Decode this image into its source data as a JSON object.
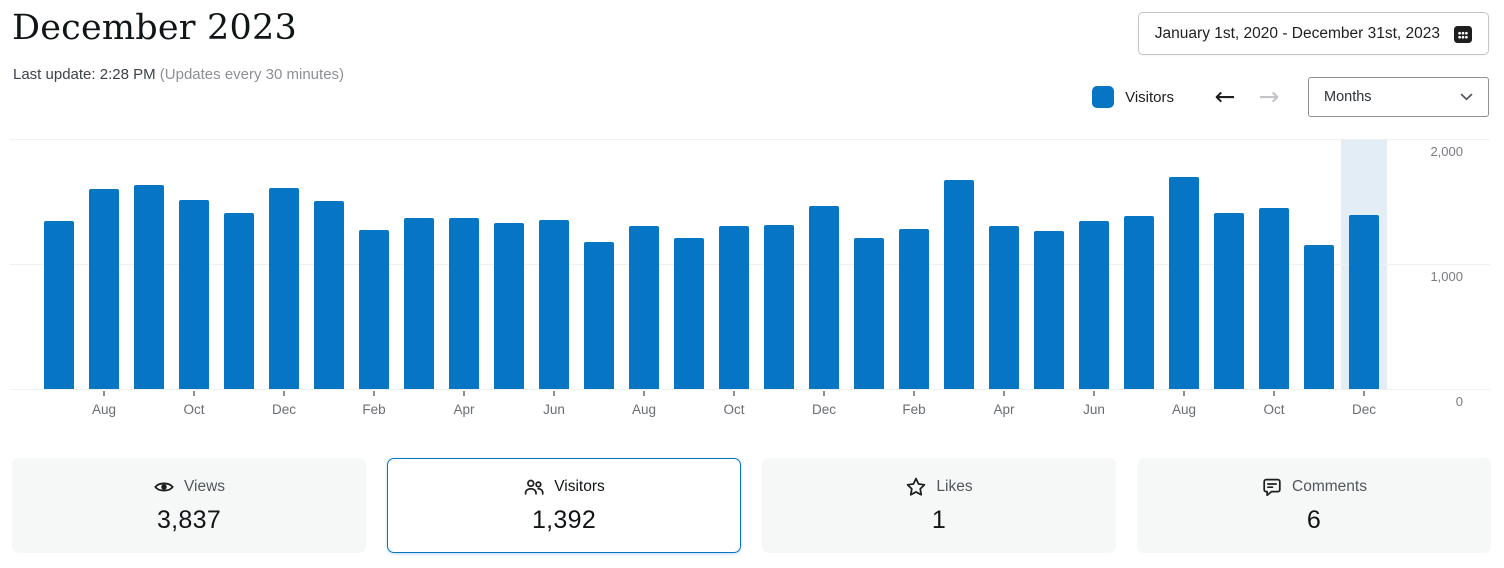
{
  "header": {
    "title": "December 2023",
    "last_update": "Last update: 2:28 PM",
    "update_note": "(Updates every 30 minutes)"
  },
  "controls": {
    "date_range_label": "January 1st, 2020 - December 31st, 2023",
    "date_range_icon": "calendar-icon",
    "legend": {
      "label": "Visitors",
      "color": "#0675C4"
    },
    "prev_icon": "arrow-left-icon",
    "prev_glyph": "←",
    "next_icon": "arrow-right-icon",
    "next_glyph": "→",
    "period_select": {
      "value": "Months",
      "icon": "chevron-down-icon"
    }
  },
  "chart_data": {
    "type": "bar",
    "x": [
      "Jul 2021",
      "Aug 2021",
      "Sep 2021",
      "Oct 2021",
      "Nov 2021",
      "Dec 2021",
      "Jan 2022",
      "Feb 2022",
      "Mar 2022",
      "Apr 2022",
      "May 2022",
      "Jun 2022",
      "Jul 2022",
      "Aug 2022",
      "Sep 2022",
      "Oct 2022",
      "Nov 2022",
      "Dec 2022",
      "Jan 2023",
      "Feb 2023",
      "Mar 2023",
      "Apr 2023",
      "May 2023",
      "Jun 2023",
      "Jul 2023",
      "Aug 2023",
      "Sep 2023",
      "Oct 2023",
      "Nov 2023",
      "Dec 2023"
    ],
    "series": [
      {
        "name": "Visitors",
        "values": [
          1340,
          1600,
          1635,
          1515,
          1410,
          1610,
          1505,
          1275,
          1370,
          1370,
          1330,
          1355,
          1175,
          1305,
          1210,
          1305,
          1315,
          1465,
          1210,
          1280,
          1670,
          1305,
          1265,
          1340,
          1385,
          1695,
          1410,
          1450,
          1155,
          1392
        ]
      }
    ],
    "x_tick_labels": [
      "Aug",
      "Oct",
      "Dec",
      "Feb",
      "Apr",
      "Jun",
      "Aug",
      "Oct",
      "Dec",
      "Feb",
      "Apr",
      "Jun",
      "Aug",
      "Oct",
      "Dec"
    ],
    "y_ticks": [
      0,
      1000,
      2000
    ],
    "y_tick_labels": [
      "0",
      "1,000",
      "2,000"
    ],
    "ylim": [
      0,
      2000
    ],
    "xlabel": "",
    "ylabel": "",
    "grid": true,
    "legend_position": "top-right",
    "bar_color": "#0675C4",
    "highlight_index": 29,
    "highlight_color": "#E2EDF5"
  },
  "summary_cards": [
    {
      "label": "Views",
      "value": "3,837",
      "icon": "eye-icon",
      "selected": false
    },
    {
      "label": "Visitors",
      "value": "1,392",
      "icon": "people-icon",
      "selected": true
    },
    {
      "label": "Likes",
      "value": "1",
      "icon": "star-icon",
      "selected": false
    },
    {
      "label": "Comments",
      "value": "6",
      "icon": "comment-icon",
      "selected": false
    }
  ]
}
